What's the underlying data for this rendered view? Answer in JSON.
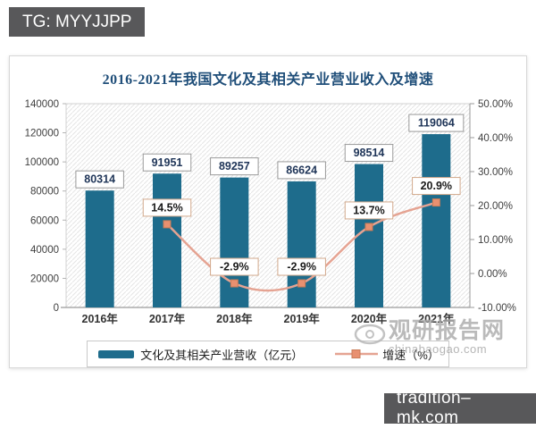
{
  "top_badge": {
    "label": "TG: MYYJJPP"
  },
  "bottom_badge": {
    "label": "tradition–mk.com"
  },
  "watermark": {
    "name": "观研报告网",
    "domain": "chinabaogao.com"
  },
  "chart_data": {
    "type": "bar",
    "title": "2016-2021年我国文化及其相关产业营业收入及增速",
    "title_color": "#1f4e79",
    "categories": [
      "2016年",
      "2017年",
      "2018年",
      "2019年",
      "2020年",
      "2021年"
    ],
    "series": [
      {
        "name": "文化及其相关产业营收（亿元）",
        "type": "bar",
        "color": "#1e6c8c",
        "values": [
          80314,
          91951,
          89257,
          86624,
          98514,
          119064
        ],
        "labels": [
          "80314",
          "91951",
          "89257",
          "86624",
          "98514",
          "119064"
        ],
        "label_box_border": "#9a9a9a",
        "label_text_color": "#1f3558"
      },
      {
        "name": "增速（%）",
        "type": "line",
        "color": "#e5a392",
        "marker_color": "#e89070",
        "marker_stroke": "#c97b57",
        "values": [
          null,
          14.5,
          -2.9,
          -2.9,
          13.7,
          20.9
        ],
        "labels": [
          "",
          "14.5%",
          "-2.9%",
          "-2.9%",
          "13.7%",
          "20.9%"
        ],
        "label_box_border": "#d2a98c",
        "label_text_color": "#1a1a1a"
      }
    ],
    "left_axis": {
      "min": 0,
      "max": 140000,
      "ticks": [
        0,
        20000,
        40000,
        60000,
        80000,
        100000,
        120000,
        140000
      ]
    },
    "right_axis": {
      "min": -10,
      "max": 50,
      "ticks": [
        -10,
        0,
        10,
        20,
        30,
        40,
        50
      ],
      "tick_labels": [
        "-10.00%",
        "0.00%",
        "10.00%",
        "20.00%",
        "30.00%",
        "40.00%",
        "50.00%"
      ]
    },
    "legend_position": "bottom",
    "grid": false,
    "plot_background": "hatched",
    "axis_text_color": "#3f3f3f",
    "axis_line_color": "#9a9a9a",
    "hatch_color": "#e5e5e5",
    "plot_border_color": "#d2d2d2"
  }
}
